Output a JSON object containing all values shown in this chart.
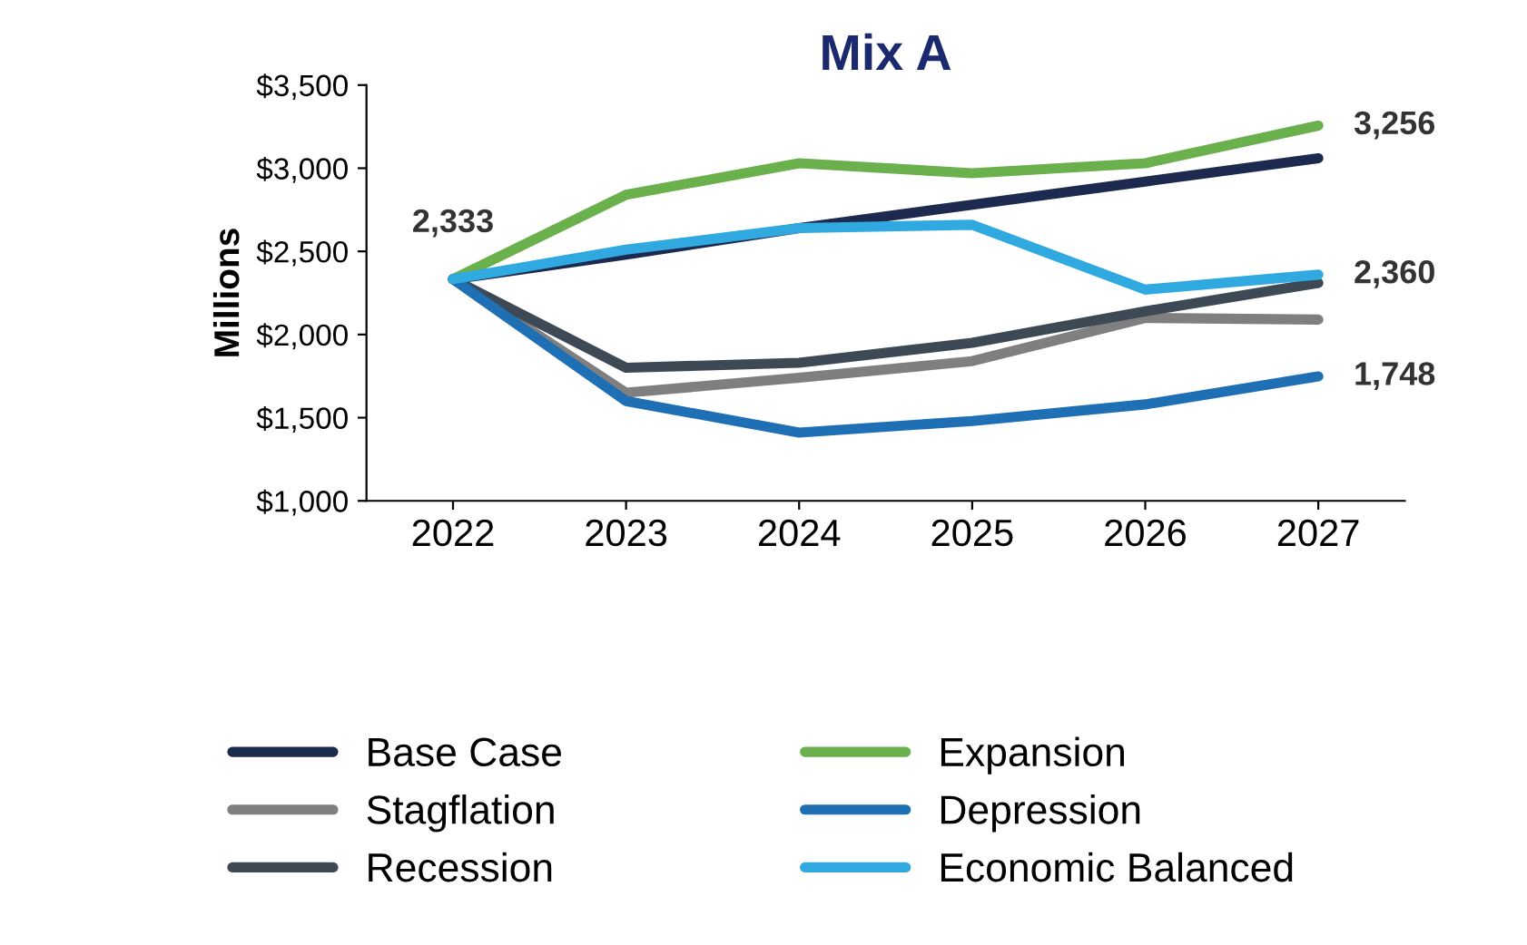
{
  "chart_data": {
    "type": "line",
    "title": "Mix A",
    "ylabel": "Millions",
    "categories": [
      "2022",
      "2023",
      "2024",
      "2025",
      "2026",
      "2027"
    ],
    "ylim": [
      1000,
      3500
    ],
    "yticks": [
      {
        "value": 1000,
        "label": "$1,000"
      },
      {
        "value": 1500,
        "label": "$1,500"
      },
      {
        "value": 2000,
        "label": "$2,000"
      },
      {
        "value": 2500,
        "label": "$2,500"
      },
      {
        "value": 3000,
        "label": "$3,000"
      },
      {
        "value": 3500,
        "label": "$3,500"
      }
    ],
    "grid": false,
    "legend": "bottom",
    "marker": "none",
    "line_style": "solid",
    "series": [
      {
        "name": "Base Case",
        "color": "#1b2a4e",
        "values": [
          2333,
          2480,
          2640,
          2780,
          2920,
          3060
        ],
        "value_labels": [
          "2,333",
          null,
          null,
          null,
          null,
          null
        ]
      },
      {
        "name": "Stagflation",
        "color": "#7f7f7f",
        "values": [
          2333,
          1650,
          1740,
          1840,
          2100,
          2090
        ]
      },
      {
        "name": "Recession",
        "color": "#3d4a55",
        "values": [
          2333,
          1800,
          1830,
          1950,
          2140,
          2310
        ]
      },
      {
        "name": "Expansion",
        "color": "#6ab04c",
        "values": [
          2333,
          2840,
          3030,
          2970,
          3030,
          3256
        ],
        "value_labels": [
          null,
          null,
          null,
          null,
          null,
          "3,256"
        ]
      },
      {
        "name": "Depression",
        "color": "#1f6fb5",
        "values": [
          2333,
          1600,
          1410,
          1480,
          1580,
          1748
        ],
        "value_labels": [
          null,
          null,
          null,
          null,
          null,
          "1,748"
        ]
      },
      {
        "name": "Economic Balanced",
        "color": "#30a8e0",
        "values": [
          2333,
          2510,
          2640,
          2660,
          2270,
          2360
        ],
        "value_labels": [
          null,
          null,
          null,
          null,
          null,
          "2,360"
        ]
      }
    ]
  }
}
